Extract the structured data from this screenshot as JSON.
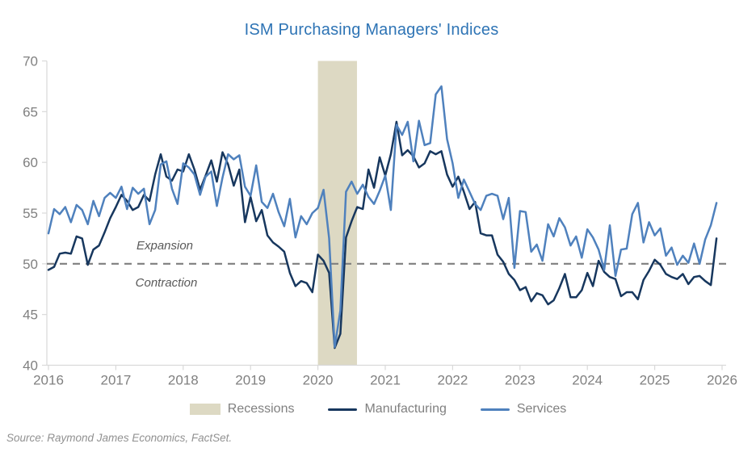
{
  "chart_title": "ISM Purchasing Managers' Indices",
  "source_note": "Source: Raymond James Economics, FactSet.",
  "colors": {
    "title": "#2E74B5",
    "axis_line": "#D9D9D9",
    "tick_label": "#808080",
    "reference_line": "#7F7F7F",
    "annotation": "#595959",
    "recession_band": "#DDD9C3",
    "manufacturing": "#17375E",
    "services": "#4F81BD"
  },
  "legend": {
    "items": [
      {
        "label": "Recessions",
        "type": "box",
        "color": "#DDD9C3"
      },
      {
        "label": "Manufacturing",
        "type": "line",
        "color": "#17375E"
      },
      {
        "label": "Services",
        "type": "line",
        "color": "#4F81BD"
      }
    ]
  },
  "annotations": {
    "above_reference": "Expansion",
    "below_reference": "Contraction"
  },
  "chart_data": {
    "type": "line",
    "title": "ISM Purchasing Managers' Indices",
    "xlabel": "",
    "ylabel": "",
    "ylim": [
      40,
      70
    ],
    "y_ticks": [
      40,
      45,
      50,
      55,
      60,
      65,
      70
    ],
    "x_ticks": [
      2016,
      2017,
      2018,
      2019,
      2020,
      2021,
      2022,
      2023,
      2024,
      2025,
      2026
    ],
    "grid": false,
    "legend_position": "bottom",
    "reference_line": {
      "value": 50,
      "style": "dashed"
    },
    "recessions": [
      {
        "start_year": 2020.0,
        "end_year": 2020.58
      }
    ],
    "x_monthly_start": "2016-01",
    "x_monthly_end": "2025-12",
    "series": [
      {
        "name": "Manufacturing",
        "color": "#17375E",
        "values": [
          49.4,
          49.7,
          51.0,
          51.1,
          51.0,
          52.7,
          52.5,
          49.9,
          51.4,
          51.8,
          53.1,
          54.5,
          55.6,
          56.8,
          56.2,
          55.3,
          55.6,
          56.8,
          56.2,
          58.8,
          60.8,
          58.6,
          58.2,
          59.3,
          59.1,
          60.8,
          59.3,
          57.3,
          58.7,
          60.2,
          58.1,
          61.0,
          59.8,
          57.7,
          59.3,
          54.1,
          56.6,
          54.2,
          55.3,
          52.8,
          52.1,
          51.7,
          51.2,
          49.1,
          47.8,
          48.3,
          48.1,
          47.2,
          50.9,
          50.3,
          49.1,
          41.7,
          43.1,
          52.6,
          54.2,
          55.6,
          55.4,
          59.3,
          57.5,
          60.5,
          58.7,
          60.8,
          64.0,
          60.7,
          61.2,
          60.6,
          59.5,
          59.9,
          61.1,
          60.8,
          61.1,
          58.8,
          57.6,
          58.6,
          57.1,
          55.4,
          56.1,
          53.0,
          52.8,
          52.8,
          50.9,
          50.2,
          49.0,
          48.4,
          47.4,
          47.7,
          46.3,
          47.1,
          46.9,
          46.0,
          46.4,
          47.6,
          49.0,
          46.7,
          46.7,
          47.4,
          49.1,
          47.8,
          50.3,
          49.2,
          48.7,
          48.5,
          46.8,
          47.2,
          47.2,
          46.5,
          48.4,
          49.3,
          50.4,
          49.9,
          49.0,
          48.7,
          48.5,
          49.0,
          48.0,
          48.7,
          48.8,
          48.3,
          47.9,
          52.5
        ]
      },
      {
        "name": "Services",
        "color": "#4F81BD",
        "values": [
          53.0,
          55.4,
          54.9,
          55.6,
          54.1,
          55.8,
          55.3,
          53.9,
          56.2,
          54.7,
          56.5,
          57.0,
          56.5,
          57.6,
          55.4,
          57.5,
          56.9,
          57.4,
          53.9,
          55.3,
          59.8,
          60.1,
          57.4,
          55.9,
          59.9,
          59.5,
          58.8,
          56.8,
          58.6,
          59.1,
          55.7,
          58.5,
          60.8,
          60.3,
          60.7,
          57.6,
          56.7,
          59.7,
          56.1,
          55.5,
          56.9,
          55.1,
          53.7,
          56.4,
          52.6,
          54.7,
          53.9,
          55.0,
          55.5,
          57.3,
          52.5,
          41.8,
          45.4,
          57.1,
          58.1,
          56.9,
          57.8,
          56.6,
          55.9,
          57.2,
          58.7,
          55.3,
          63.7,
          62.7,
          64.0,
          60.1,
          64.1,
          61.7,
          61.9,
          66.7,
          67.5,
          62.3,
          59.9,
          56.5,
          58.3,
          57.1,
          55.9,
          55.3,
          56.7,
          56.9,
          56.7,
          54.4,
          56.5,
          49.6,
          55.2,
          55.1,
          51.2,
          51.9,
          50.3,
          53.9,
          52.7,
          54.5,
          53.6,
          51.8,
          52.7,
          50.6,
          53.4,
          52.6,
          51.4,
          49.4,
          53.8,
          48.8,
          51.4,
          51.5,
          54.9,
          56.0,
          52.1,
          54.1,
          52.8,
          53.5,
          50.8,
          51.6,
          49.9,
          50.8,
          50.1,
          52.0,
          50.0,
          52.4,
          53.8,
          56.0
        ]
      }
    ]
  }
}
